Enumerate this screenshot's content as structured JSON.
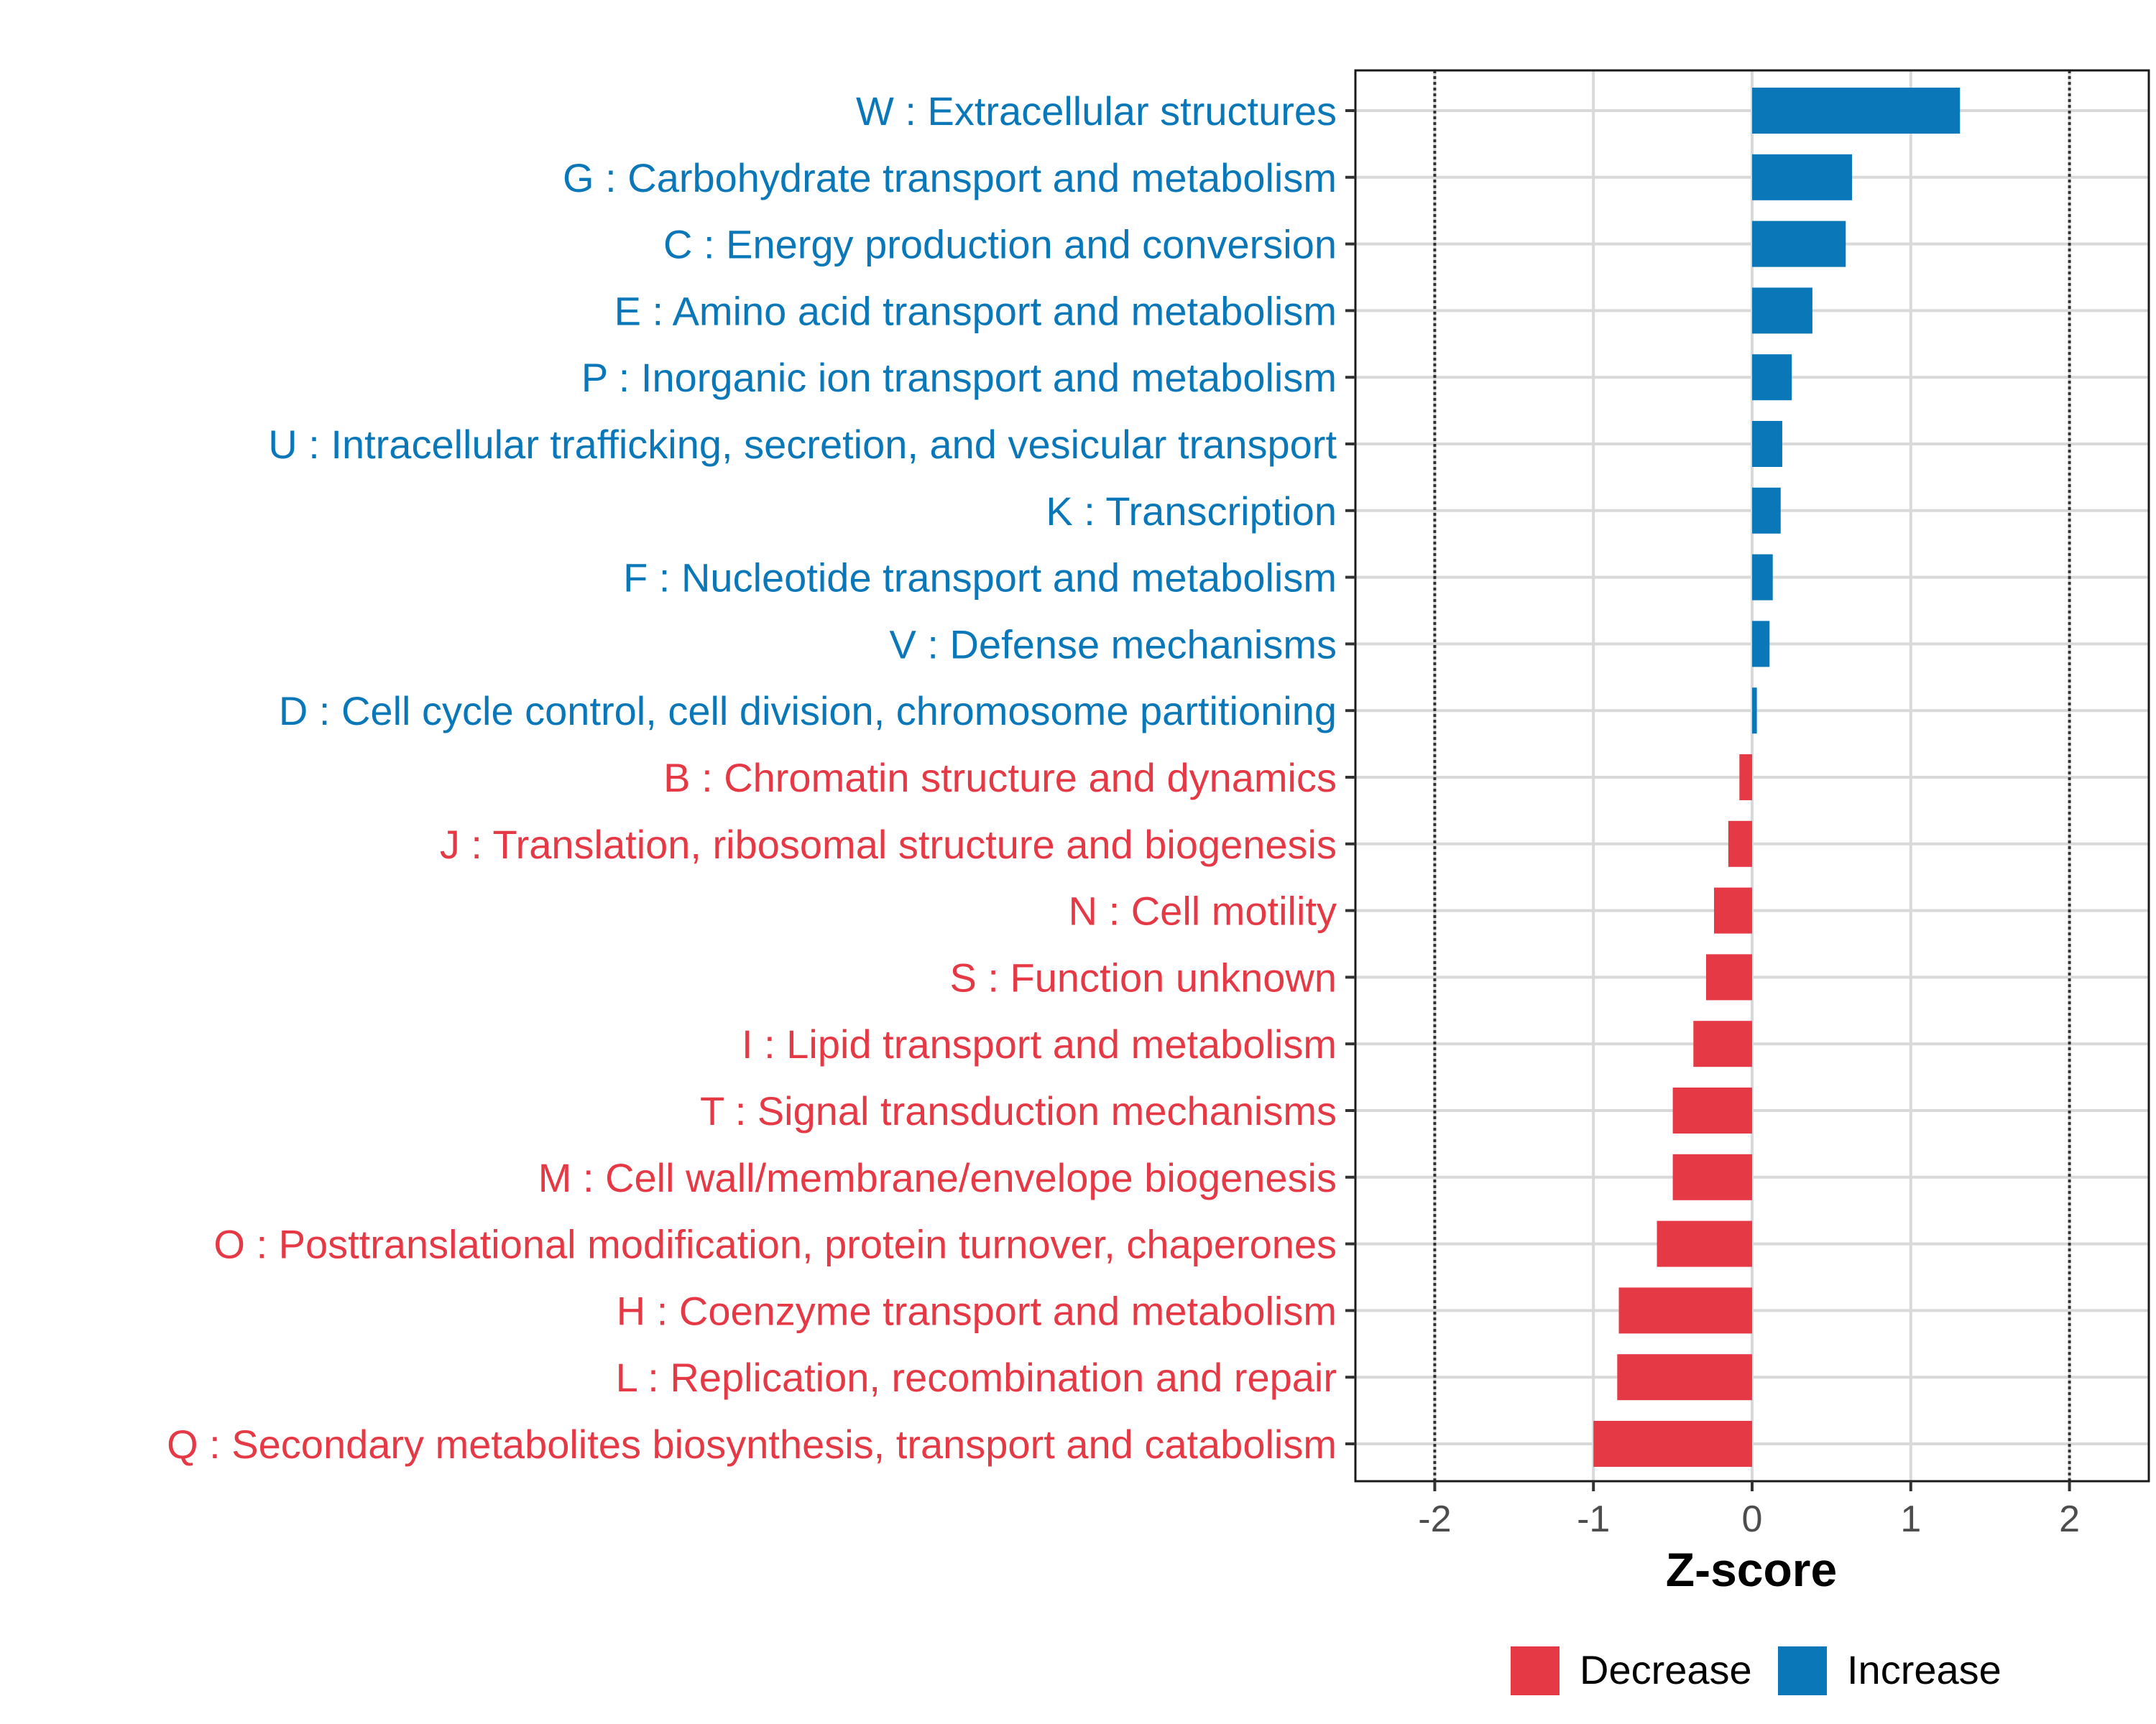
{
  "chart_data": {
    "type": "bar",
    "orientation": "horizontal",
    "title": "",
    "xlabel": "Z-score",
    "ylabel": "",
    "xlim": [
      -2.5,
      2.5
    ],
    "xticks": [
      -2,
      -1,
      0,
      1,
      2
    ],
    "xtick_labels": [
      "-2",
      "-1",
      "0",
      "1",
      "2"
    ],
    "reference_lines": [
      -2,
      2
    ],
    "grid": true,
    "legend_position": "bottom",
    "colors": {
      "Decrease": "#e63946",
      "Increase": "#0a78b8"
    },
    "categories": [
      "W : Extracellular structures",
      "G : Carbohydrate transport and metabolism",
      "C : Energy production and conversion",
      "E : Amino acid transport and metabolism",
      "P : Inorganic ion transport and metabolism",
      "U : Intracellular trafficking, secretion, and vesicular transport",
      "K : Transcription",
      "F : Nucleotide transport and metabolism",
      "V : Defense mechanisms",
      "D : Cell cycle control, cell division, chromosome partitioning",
      "B : Chromatin structure and dynamics",
      "J : Translation, ribosomal structure and biogenesis",
      "N : Cell motility",
      "S : Function unknown",
      "I : Lipid transport and metabolism",
      "T : Signal transduction mechanisms",
      "M : Cell wall/membrane/envelope biogenesis",
      "O : Posttranslational modification, protein turnover, chaperones",
      "H : Coenzyme transport and metabolism",
      "L : Replication, recombination and repair",
      "Q : Secondary metabolites biosynthesis, transport and catabolism"
    ],
    "values": [
      1.31,
      0.63,
      0.59,
      0.38,
      0.25,
      0.19,
      0.18,
      0.13,
      0.11,
      0.03,
      -0.08,
      -0.15,
      -0.24,
      -0.29,
      -0.37,
      -0.5,
      -0.5,
      -0.6,
      -0.84,
      -0.85,
      -1.0
    ],
    "groups": [
      "Increase",
      "Increase",
      "Increase",
      "Increase",
      "Increase",
      "Increase",
      "Increase",
      "Increase",
      "Increase",
      "Increase",
      "Decrease",
      "Decrease",
      "Decrease",
      "Decrease",
      "Decrease",
      "Decrease",
      "Decrease",
      "Decrease",
      "Decrease",
      "Decrease",
      "Decrease"
    ],
    "legend": [
      {
        "label": "Decrease",
        "color": "#e63946"
      },
      {
        "label": "Increase",
        "color": "#0a78b8"
      }
    ]
  }
}
